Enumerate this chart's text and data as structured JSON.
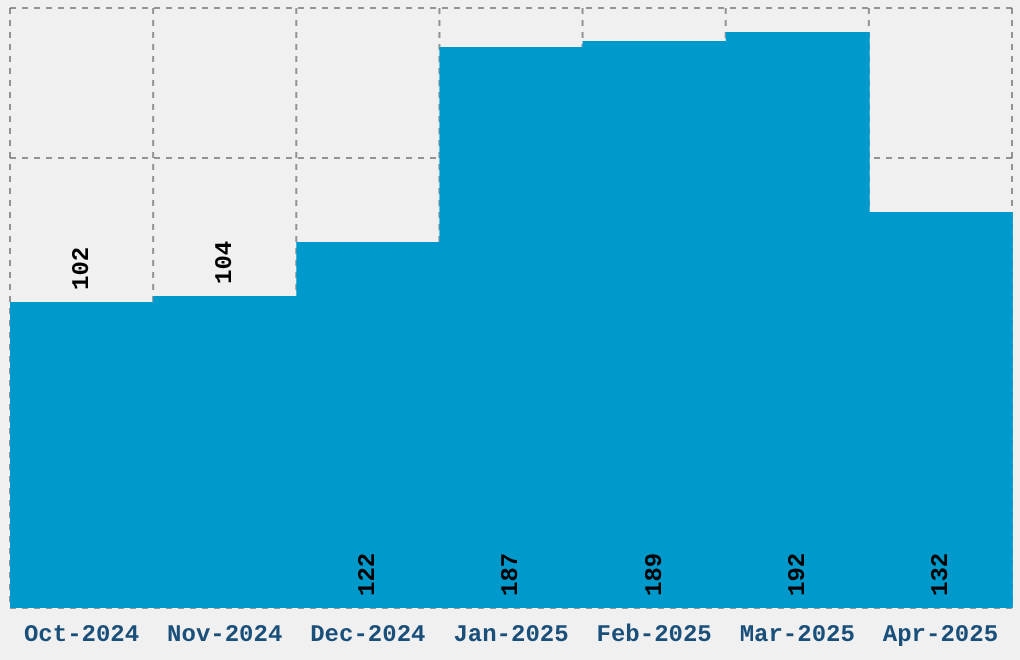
{
  "chart_data": {
    "type": "bar",
    "categories": [
      "Oct-2024",
      "Nov-2024",
      "Dec-2024",
      "Jan-2025",
      "Feb-2025",
      "Mar-2025",
      "Apr-2025"
    ],
    "values": [
      102,
      104,
      122,
      187,
      189,
      192,
      132
    ],
    "color": "#0099cc",
    "data_labels": true,
    "grid": true,
    "tick_labels": "x"
  }
}
